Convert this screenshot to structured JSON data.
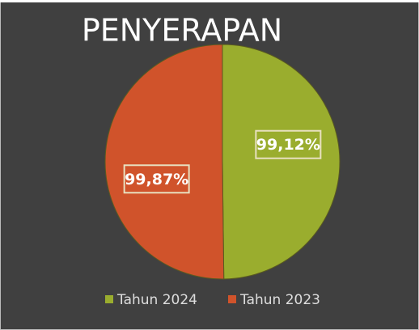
{
  "chart_data": {
    "type": "pie",
    "title": "PENYERAPAN",
    "categories": [
      "Tahun 2024",
      "Tahun 2023"
    ],
    "values": [
      99.12,
      99.87
    ],
    "value_labels": [
      "99,12%",
      "99,87%"
    ],
    "colors": [
      "#9aad2e",
      "#d0532b"
    ],
    "legend": "bottom"
  }
}
